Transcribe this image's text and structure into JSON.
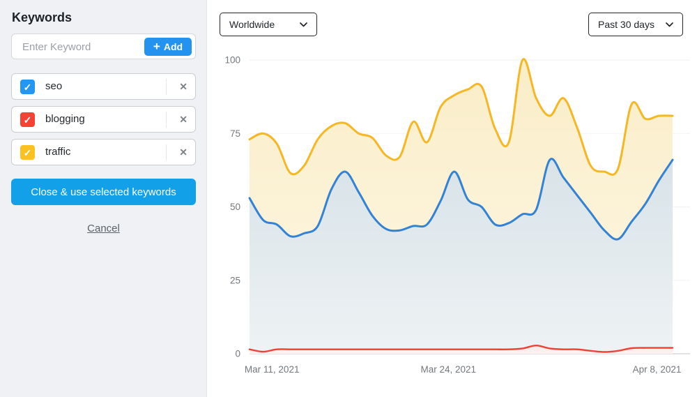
{
  "sidebar": {
    "title": "Keywords",
    "input": {
      "placeholder": "Enter Keyword",
      "add_label": "Add"
    },
    "keywords": [
      {
        "label": "seo",
        "color": "#2196f3",
        "checked": true
      },
      {
        "label": "blogging",
        "color": "#f44336",
        "checked": true
      },
      {
        "label": "traffic",
        "color": "#fbc120",
        "checked": true
      }
    ],
    "close_button": "Close & use selected keywords",
    "cancel_link": "Cancel"
  },
  "toolbar": {
    "region_select": "Worldwide",
    "range_select": "Past 30 days"
  },
  "icons": {
    "plus": "+",
    "check": "✓",
    "remove": "✕"
  },
  "colors": {
    "add_button": "#2493f0",
    "close_button": "#12a0e9",
    "sidebar_bg": "#eff1f4",
    "grid_line": "#f1f2f3",
    "axis_line": "#d7d9dc",
    "axis_text": "#73787d"
  },
  "chart_data": {
    "type": "area",
    "title": "",
    "xlabel": "",
    "ylabel": "",
    "ylim": [
      0,
      100
    ],
    "grid": "horizontal",
    "legend": "none",
    "y_ticks": [
      0,
      25,
      50,
      75,
      100
    ],
    "x_ticks": [
      {
        "label": "Mar 11, 2021",
        "pos": 0.053
      },
      {
        "label": "Mar 24, 2021",
        "pos": 0.47
      },
      {
        "label": "Apr 8, 2021",
        "pos": 0.963
      }
    ],
    "series": [
      {
        "name": "traffic",
        "line_color": "#f5b723",
        "fill_top": "#faedc7",
        "fill_bottom": "#fdf7e6",
        "values": [
          73,
          75,
          71.5,
          61.5,
          64,
          73,
          77.5,
          78.5,
          75,
          73.5,
          67.5,
          67,
          79,
          72,
          84,
          88,
          90,
          91,
          76.5,
          72,
          100,
          87,
          81,
          87,
          77,
          64,
          62,
          63,
          85,
          80,
          81,
          81
        ]
      },
      {
        "name": "seo",
        "line_color": "#3382d4",
        "fill_top": "#d8e3e8",
        "fill_bottom": "#eef2f4",
        "values": [
          53,
          45.5,
          44,
          40,
          41,
          43.5,
          56,
          62,
          55,
          47,
          42.5,
          42,
          43.5,
          44,
          52,
          62,
          52.5,
          50,
          44,
          44.5,
          47.5,
          49,
          66,
          60,
          54,
          48,
          42,
          39,
          45,
          51,
          59,
          66
        ]
      },
      {
        "name": "blogging",
        "line_color": "#ee4033",
        "fill_top": "#fbe9e6",
        "fill_bottom": "#fdf2f0",
        "values": [
          1.5,
          0.7,
          1.5,
          1.5,
          1.5,
          1.5,
          1.5,
          1.5,
          1.5,
          1.5,
          1.5,
          1.5,
          1.5,
          1.5,
          1.5,
          1.5,
          1.5,
          1.5,
          1.5,
          1.5,
          1.8,
          2.8,
          1.8,
          1.5,
          1.5,
          1,
          0.6,
          1,
          1.9,
          2,
          2,
          2
        ]
      }
    ]
  }
}
